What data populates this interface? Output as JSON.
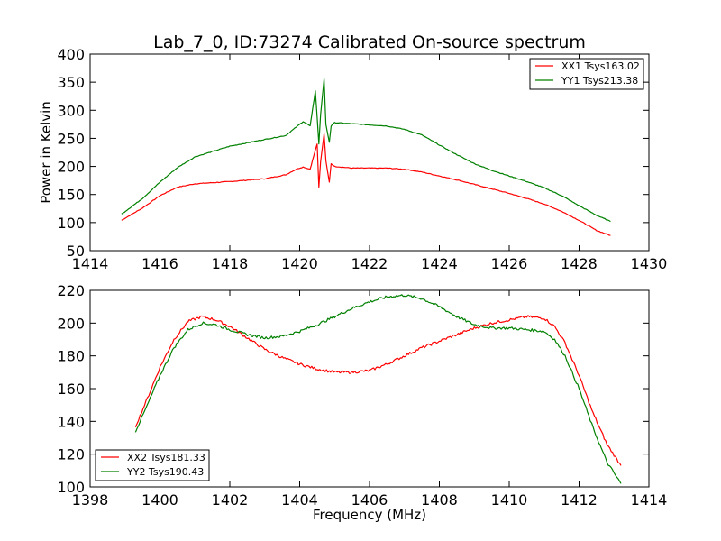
{
  "figure": {
    "title": "Lab_7_0, ID:73274 Calibrated On-source spectrum",
    "ylabel": "Power in Kelvin",
    "xlabel": "Frequency (MHz)"
  },
  "chart_data": [
    {
      "type": "line",
      "title": "Lab_7_0, ID:73274 Calibrated On-source spectrum",
      "xlabel": "",
      "ylabel": "Power in Kelvin",
      "xlim": [
        1414,
        1430
      ],
      "ylim": [
        50,
        400
      ],
      "xticks": [
        1414,
        1416,
        1418,
        1420,
        1422,
        1424,
        1426,
        1428,
        1430
      ],
      "yticks": [
        50,
        100,
        150,
        200,
        250,
        300,
        350,
        400
      ],
      "grid": false,
      "legend_position": "top-right",
      "series": [
        {
          "name": "XX1 Tsys163.02",
          "color": "#ff0000",
          "x": [
            1414.9,
            1415.5,
            1416.0,
            1416.5,
            1417.0,
            1418.0,
            1419.0,
            1419.6,
            1419.9,
            1420.1,
            1420.3,
            1420.4,
            1420.5,
            1420.55,
            1420.6,
            1420.7,
            1420.75,
            1420.85,
            1420.9,
            1421.0,
            1421.5,
            1422.0,
            1422.5,
            1423.0,
            1423.5,
            1424.0,
            1424.5,
            1425.0,
            1425.5,
            1426.0,
            1426.5,
            1427.0,
            1427.5,
            1428.0,
            1428.5,
            1428.9
          ],
          "y": [
            104,
            126,
            148,
            163,
            169,
            173,
            178,
            185,
            195,
            199,
            195,
            218,
            240,
            163,
            208,
            258,
            210,
            172,
            205,
            200,
            197,
            197,
            197,
            195,
            190,
            183,
            176,
            168,
            160,
            152,
            143,
            133,
            120,
            104,
            86,
            77
          ]
        },
        {
          "name": "YY1 Tsys213.38",
          "color": "#008000",
          "x": [
            1414.9,
            1415.5,
            1416.0,
            1416.5,
            1417.0,
            1418.0,
            1419.0,
            1419.6,
            1419.9,
            1420.1,
            1420.3,
            1420.45,
            1420.55,
            1420.6,
            1420.7,
            1420.75,
            1420.85,
            1420.9,
            1421.0,
            1421.5,
            1422.0,
            1422.5,
            1423.0,
            1423.5,
            1424.0,
            1424.5,
            1425.0,
            1425.5,
            1426.0,
            1426.5,
            1427.0,
            1427.5,
            1428.0,
            1428.5,
            1428.9
          ],
          "y": [
            115,
            143,
            172,
            198,
            217,
            236,
            248,
            255,
            270,
            280,
            272,
            335,
            240,
            292,
            356,
            275,
            243,
            272,
            278,
            276,
            274,
            272,
            266,
            256,
            238,
            221,
            205,
            193,
            183,
            173,
            162,
            148,
            130,
            113,
            102
          ]
        }
      ]
    },
    {
      "type": "line",
      "title": "",
      "xlabel": "Frequency (MHz)",
      "ylabel": "",
      "xlim": [
        1398,
        1414
      ],
      "ylim": [
        100,
        220
      ],
      "xticks": [
        1398,
        1400,
        1402,
        1404,
        1406,
        1408,
        1410,
        1412,
        1414
      ],
      "yticks": [
        100,
        120,
        140,
        160,
        180,
        200,
        220
      ],
      "grid": false,
      "legend_position": "bottom-left",
      "series": [
        {
          "name": "XX2 Tsys181.33",
          "color": "#ff0000",
          "x": [
            1399.3,
            1399.6,
            1400.0,
            1400.4,
            1400.8,
            1401.2,
            1401.6,
            1402.0,
            1402.5,
            1403.0,
            1403.5,
            1404.0,
            1404.5,
            1405.0,
            1405.5,
            1406.0,
            1406.5,
            1407.0,
            1407.5,
            1408.0,
            1408.5,
            1409.0,
            1409.5,
            1410.0,
            1410.5,
            1411.0,
            1411.3,
            1411.6,
            1412.0,
            1412.4,
            1412.8,
            1413.2
          ],
          "y": [
            137,
            152,
            173,
            190,
            201,
            204,
            202,
            198,
            191,
            184,
            179,
            175,
            172,
            170,
            170,
            171,
            175,
            180,
            185,
            189,
            193,
            197,
            200,
            202,
            204,
            203,
            198,
            188,
            168,
            145,
            126,
            113
          ]
        },
        {
          "name": "YY2 Tsys190.43",
          "color": "#008000",
          "x": [
            1399.3,
            1399.6,
            1400.0,
            1400.4,
            1400.8,
            1401.2,
            1401.6,
            1402.0,
            1402.5,
            1403.0,
            1403.5,
            1404.0,
            1404.5,
            1405.0,
            1405.5,
            1406.0,
            1406.5,
            1407.0,
            1407.5,
            1408.0,
            1408.5,
            1409.0,
            1409.5,
            1410.0,
            1410.5,
            1411.0,
            1411.3,
            1411.6,
            1412.0,
            1412.4,
            1412.8,
            1413.2
          ],
          "y": [
            134,
            148,
            168,
            185,
            196,
            200,
            199,
            196,
            193,
            191,
            192,
            195,
            199,
            204,
            209,
            213,
            216,
            217,
            215,
            210,
            204,
            199,
            197,
            197,
            196,
            195,
            190,
            180,
            160,
            136,
            115,
            102
          ]
        }
      ]
    }
  ]
}
